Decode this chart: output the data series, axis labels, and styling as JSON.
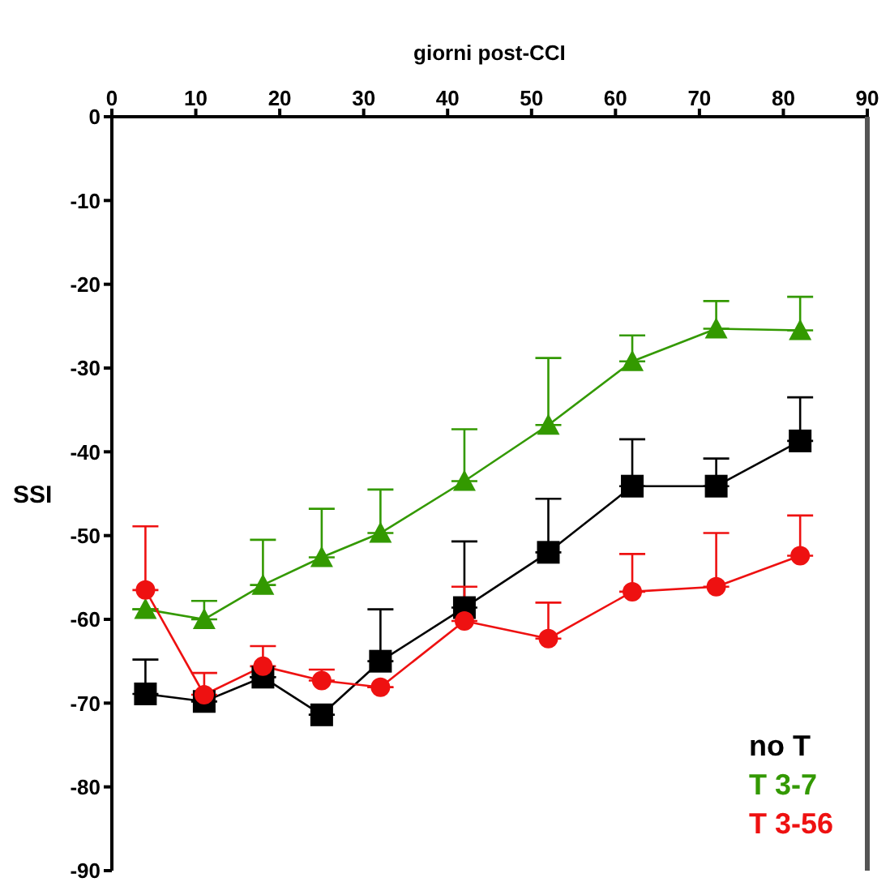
{
  "chart_data": {
    "type": "line",
    "xlabel": "giorni post-CCI",
    "ylabel": "SSI",
    "x": [
      4,
      11,
      18,
      25,
      32,
      42,
      52,
      62,
      72,
      82
    ],
    "xlim": [
      0,
      90
    ],
    "xticks": [
      0,
      10,
      20,
      30,
      40,
      50,
      60,
      70,
      80,
      90
    ],
    "ylim": [
      -90,
      0
    ],
    "yticks": [
      -90,
      -80,
      -70,
      -60,
      -50,
      -40,
      -30,
      -20,
      -10,
      0
    ],
    "grid": false,
    "legend": "bottom right",
    "series": [
      {
        "name": "no T",
        "color": "#000000",
        "marker": "square",
        "values": [
          -68.9,
          -69.8,
          -66.9,
          -71.4,
          -65.0,
          -58.6,
          -52.0,
          -44.1,
          -44.1,
          -38.7
        ],
        "errors": [
          [
            -68.9,
            -64.8
          ],
          null,
          null,
          null,
          [
            -65.0,
            -58.8
          ],
          [
            -58.6,
            -50.7
          ],
          [
            -52.0,
            -45.6
          ],
          [
            -44.1,
            -38.5
          ],
          [
            -44.1,
            -40.8
          ],
          [
            -38.7,
            -33.5
          ]
        ]
      },
      {
        "name": "T 3-7",
        "color": "#339900",
        "marker": "triangle",
        "values": [
          -58.8,
          -60.0,
          -55.9,
          -52.6,
          -49.7,
          -43.5,
          -36.8,
          -29.2,
          -25.3,
          -25.5
        ],
        "errors": [
          null,
          [
            -60.0,
            -57.8
          ],
          [
            -55.9,
            -50.5
          ],
          [
            -52.6,
            -46.8
          ],
          [
            -49.7,
            -44.5
          ],
          [
            -43.5,
            -37.3
          ],
          [
            -36.8,
            -28.8
          ],
          [
            -29.2,
            -26.1
          ],
          [
            -25.3,
            -22.0
          ],
          [
            -25.5,
            -21.5
          ]
        ]
      },
      {
        "name": "T 3-56",
        "color": "#ee1111",
        "marker": "circle",
        "values": [
          -56.5,
          -69.0,
          -65.6,
          -67.3,
          -68.1,
          -60.2,
          -62.3,
          -56.7,
          -56.1,
          -52.4
        ],
        "errors": [
          [
            -56.5,
            -48.9
          ],
          [
            -69.0,
            -66.4
          ],
          [
            -65.6,
            -63.2
          ],
          [
            -67.3,
            -66.0
          ],
          null,
          [
            -60.2,
            -56.1
          ],
          [
            -62.3,
            -58.0
          ],
          [
            -56.7,
            -52.2
          ],
          [
            -56.1,
            -49.7
          ],
          [
            -52.4,
            -47.6
          ]
        ]
      }
    ]
  }
}
